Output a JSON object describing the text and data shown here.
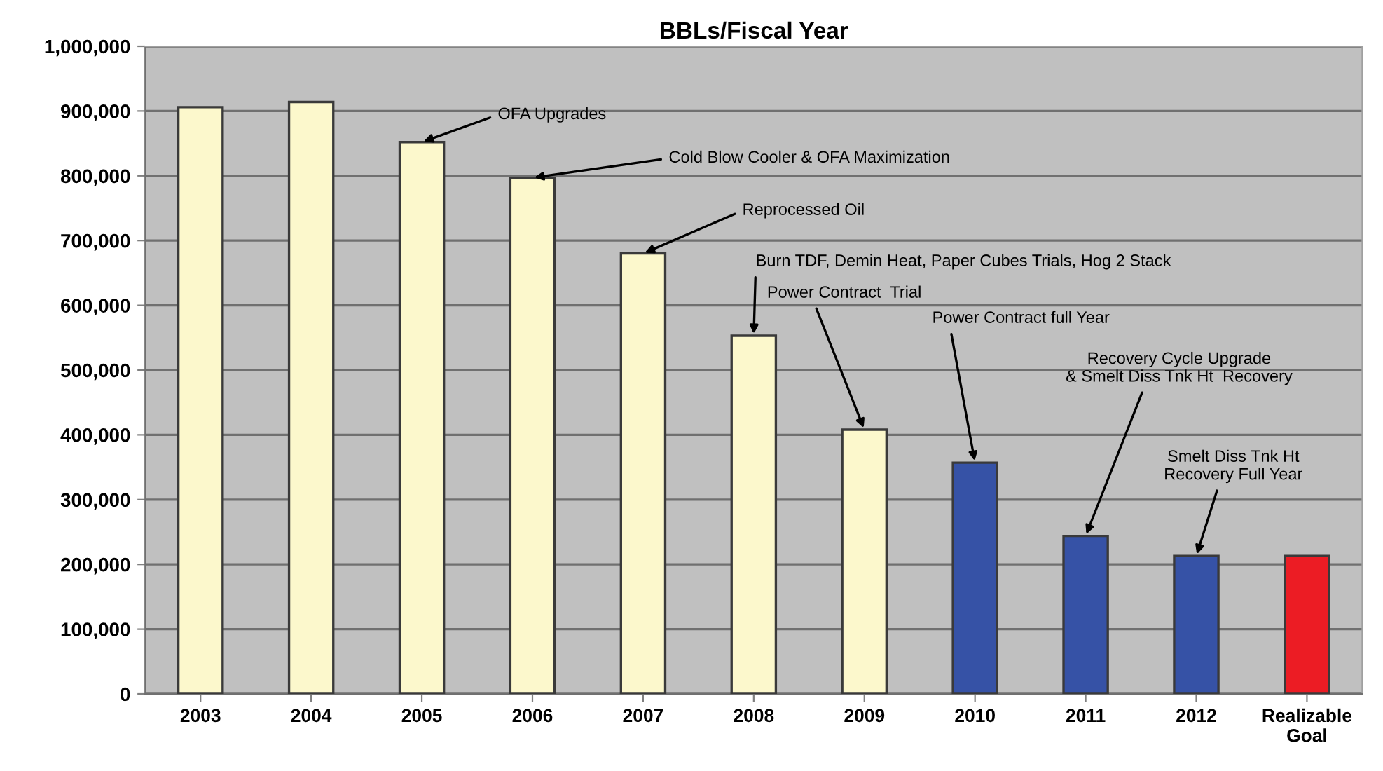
{
  "chart_data": {
    "type": "bar",
    "title": "BBLs/Fiscal Year",
    "categories": [
      "2003",
      "2004",
      "2005",
      "2006",
      "2007",
      "2008",
      "2009",
      "2010",
      "2011",
      "2012",
      "Realizable\nGoal"
    ],
    "values": [
      906000,
      914000,
      852000,
      797000,
      680000,
      553000,
      408000,
      357000,
      244000,
      213000,
      213000
    ],
    "colors": [
      "#fcf8cc",
      "#fcf8cc",
      "#fcf8cc",
      "#fcf8cc",
      "#fcf8cc",
      "#fcf8cc",
      "#fcf8cc",
      "#3652a6",
      "#3652a6",
      "#3652a6",
      "#ec1c24"
    ],
    "ylim": [
      0,
      1000000
    ],
    "yticks": [
      {
        "value": 0,
        "label": "0"
      },
      {
        "value": 100000,
        "label": "100,000"
      },
      {
        "value": 200000,
        "label": "200,000"
      },
      {
        "value": 300000,
        "label": "300,000"
      },
      {
        "value": 400000,
        "label": "400,000"
      },
      {
        "value": 500000,
        "label": "500,000"
      },
      {
        "value": 600000,
        "label": "600,000"
      },
      {
        "value": 700000,
        "label": "700,000"
      },
      {
        "value": 800000,
        "label": "800,000"
      },
      {
        "value": 900000,
        "label": "900,000"
      },
      {
        "value": 1000000,
        "label": "1,000,000"
      }
    ],
    "grid": "y",
    "annotations": [
      {
        "text": "OFA Upgrades",
        "x": "2005",
        "y": 852000
      },
      {
        "text": "Cold Blow Cooler & OFA Maximization",
        "x": "2006",
        "y": 797000
      },
      {
        "text": "Reprocessed Oil",
        "x": "2007",
        "y": 680000
      },
      {
        "text": "Burn TDF, Demin Heat, Paper Cubes Trials, Hog 2 Stack",
        "x": "2008",
        "y": 553000
      },
      {
        "text": "Power Contract  Trial",
        "x": "2009",
        "y": 408000
      },
      {
        "text": "Power Contract full Year",
        "x": "2010",
        "y": 357000
      },
      {
        "text": "Recovery Cycle Upgrade\n& Smelt Diss Tnk Ht  Recovery",
        "x": "2011",
        "y": 244000
      },
      {
        "text": "Smelt Diss Tnk Ht\nRecovery Full Year",
        "x": "2012",
        "y": 213000
      }
    ]
  }
}
